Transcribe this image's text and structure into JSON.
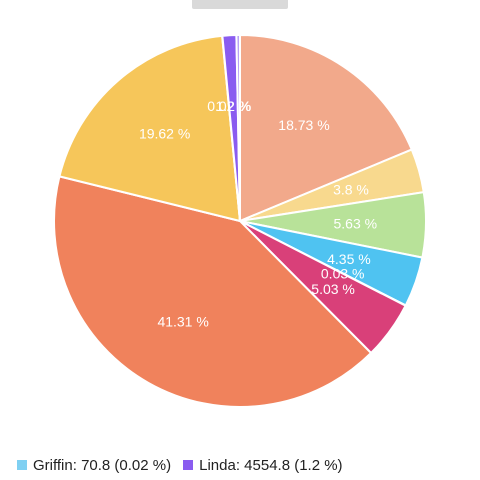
{
  "chart_data": {
    "type": "pie",
    "slices": [
      {
        "label": "",
        "percent": 18.73,
        "percent_label": "18.73 %",
        "color": "#f2a98b"
      },
      {
        "label": "",
        "percent": 3.8,
        "percent_label": "3.8 %",
        "color": "#f8d98e"
      },
      {
        "label": "",
        "percent": 5.63,
        "percent_label": "5.63 %",
        "color": "#b8e299"
      },
      {
        "label": "",
        "percent": 4.35,
        "percent_label": "4.35 %",
        "color": "#4fc3f1"
      },
      {
        "label": "",
        "percent": 0.03,
        "percent_label": "0.03 %",
        "color": "#4fc3f1"
      },
      {
        "label": "",
        "percent": 5.03,
        "percent_label": "5.03 %",
        "color": "#d94079"
      },
      {
        "label": "",
        "percent": 41.31,
        "percent_label": "41.31 %",
        "color": "#f0825c"
      },
      {
        "label": "",
        "percent": 19.62,
        "percent_label": "19.62 %",
        "color": "#f6c65a"
      },
      {
        "label": "Griffin",
        "value": 70.8,
        "percent": 0.02,
        "percent_label": "0.02 %",
        "color": "#7fd0f2"
      },
      {
        "label": "Linda",
        "value": 4554.8,
        "percent": 1.2,
        "percent_label": "1.2 %",
        "color": "#8a5cf0"
      },
      {
        "label": "",
        "percent": 0.31,
        "percent_label": "",
        "color": "#b9a2f7"
      }
    ],
    "legend": {
      "position": "bottom-left",
      "items": [
        {
          "text": "Griffin: 70.8 (0.02 %)",
          "color": "#7fd0f2"
        },
        {
          "text": "Linda: 4554.8 (1.2 %)",
          "color": "#8a5cf0"
        }
      ]
    }
  }
}
